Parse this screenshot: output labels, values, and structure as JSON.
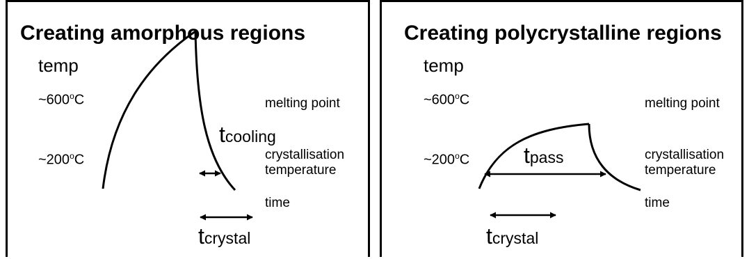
{
  "left": {
    "title": "Creating amorphous regions",
    "axis_temp": "temp",
    "temp_high": "~600",
    "temp_low": "~200",
    "deg": "o",
    "unit": "C",
    "melting_point": "melting point",
    "cryst_line1": "crystallisation",
    "cryst_line2": "temperature",
    "axis_time": "time",
    "t_cooling": "cooling",
    "t_crystal": "crystal",
    "t_letter": "t"
  },
  "right": {
    "title": "Creating polycrystalline regions",
    "axis_temp": "temp",
    "temp_high": "~600",
    "temp_low": "~200",
    "deg": "o",
    "unit": "C",
    "melting_point": "melting point",
    "cryst_line1": "crystallisation",
    "cryst_line2": "temperature",
    "axis_time": "time",
    "t_pass": "pass",
    "t_crystal": "crystal",
    "t_letter": "t"
  }
}
